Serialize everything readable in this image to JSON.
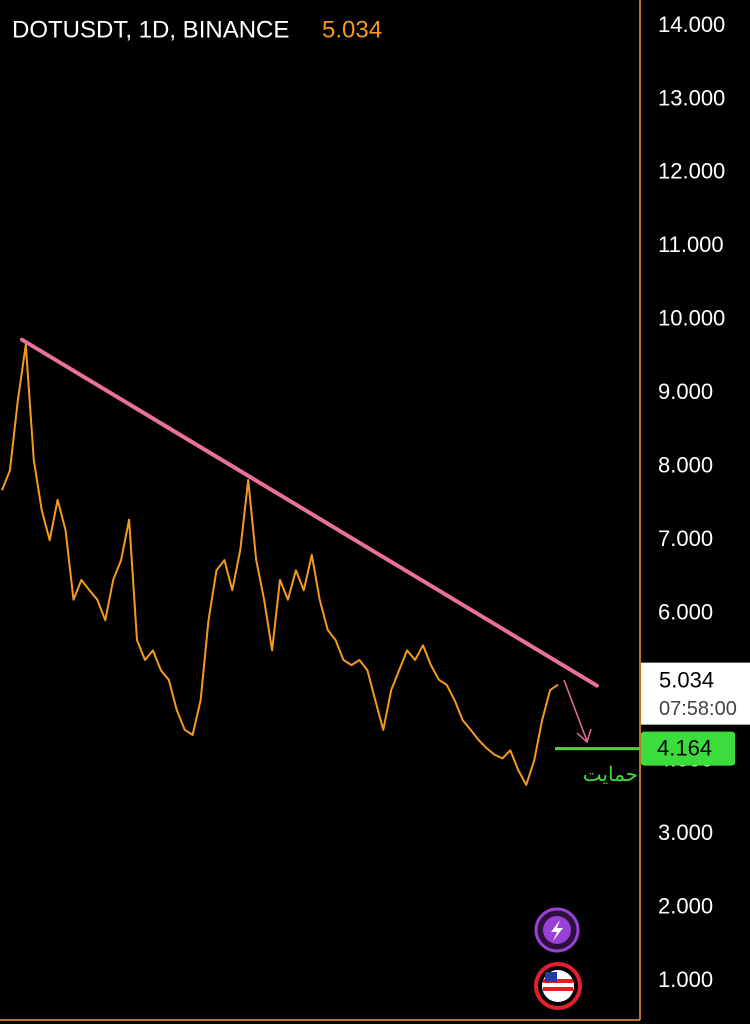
{
  "chart_data": {
    "type": "line",
    "title": "DOTUSDT, 1D, BINANCE",
    "last_price": 5.034,
    "countdown": "07:58:00",
    "color": "#f39a1f",
    "values": [
      7.68,
      7.95,
      8.91,
      9.66,
      8.09,
      7.41,
      7.0,
      7.55,
      7.14,
      6.19,
      6.46,
      6.32,
      6.19,
      5.91,
      6.46,
      6.73,
      7.28,
      5.64,
      5.37,
      5.5,
      5.23,
      5.1,
      4.69,
      4.42,
      4.35,
      4.82,
      5.91,
      6.59,
      6.73,
      6.32,
      6.87,
      7.82,
      6.73,
      6.19,
      5.5,
      6.46,
      6.19,
      6.59,
      6.32,
      6.8,
      6.19,
      5.78,
      5.64,
      5.37,
      5.3,
      5.37,
      5.23,
      4.82,
      4.42,
      4.96,
      5.23,
      5.5,
      5.37,
      5.57,
      5.3,
      5.1,
      5.03,
      4.82,
      4.55,
      4.42,
      4.28,
      4.17,
      4.08,
      4.03,
      4.14,
      3.87,
      3.67,
      4.0,
      4.55,
      4.96,
      5.034
    ],
    "ylim": [
      0.469,
      14.354
    ],
    "yticks": [
      {
        "value": 1,
        "label": "1.000"
      },
      {
        "value": 2,
        "label": "2.000"
      },
      {
        "value": 3,
        "label": "3.000"
      },
      {
        "value": 4,
        "label": "4.000"
      },
      {
        "value": 5,
        "label": "5.000"
      },
      {
        "value": 6,
        "label": "6.000"
      },
      {
        "value": 7,
        "label": "7.000"
      },
      {
        "value": 8,
        "label": "8.000"
      },
      {
        "value": 9,
        "label": "9.000"
      },
      {
        "value": 10,
        "label": "10.000"
      },
      {
        "value": 11,
        "label": "11.000"
      },
      {
        "value": 12,
        "label": "12.000"
      },
      {
        "value": 13,
        "label": "13.000"
      },
      {
        "value": 14,
        "label": "14.000"
      }
    ],
    "grid": false,
    "trendline": {
      "color": "#e8709a",
      "values": [
        9.73,
        5.02
      ]
    },
    "support": {
      "value": 4.164,
      "text": "حمايت",
      "color": "#3ddc3d"
    }
  }
}
